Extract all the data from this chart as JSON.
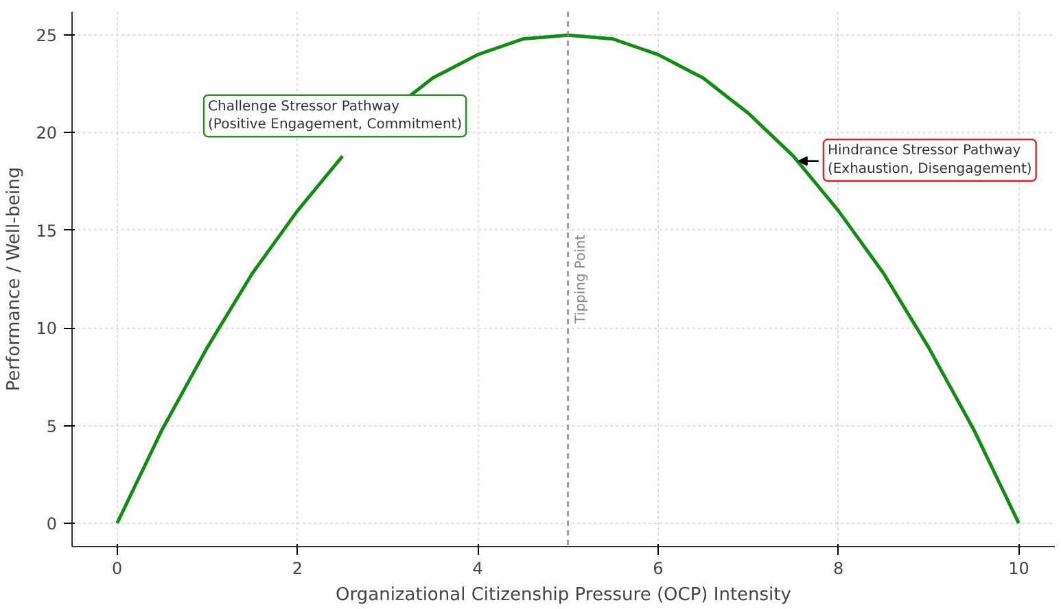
{
  "chart_data": {
    "type": "line",
    "xlabel": "Organizational Citizenship Pressure (OCP) Intensity",
    "ylabel": "Performance / Well-being",
    "x": [
      0,
      0.25,
      0.5,
      0.75,
      1,
      1.25,
      1.5,
      1.75,
      2,
      2.25,
      2.5,
      2.75,
      3,
      3.25,
      3.5,
      3.75,
      4,
      4.25,
      4.5,
      4.75,
      5,
      5.25,
      5.5,
      5.75,
      6,
      6.25,
      6.5,
      6.75,
      7,
      7.25,
      7.5,
      7.75,
      8,
      8.25,
      8.5,
      8.75,
      9,
      9.25,
      9.5,
      9.75,
      10
    ],
    "series": [
      {
        "color": "#168a16",
        "values": [
          0,
          2.4,
          4.8,
          6.9,
          9,
          10.9,
          12.8,
          14.4,
          16,
          17.4,
          18.8,
          null,
          null,
          21.9,
          22.8,
          23.4,
          24,
          24.4,
          24.8,
          24.9,
          25,
          24.9,
          24.8,
          24.4,
          24,
          23.4,
          22.8,
          21.9,
          21,
          19.9,
          18.8,
          17.4,
          16,
          14.4,
          12.8,
          10.9,
          9,
          6.9,
          4.8,
          2.4,
          0
        ]
      }
    ],
    "xlim": [
      -0.5,
      10.4
    ],
    "ylim": [
      -1.2,
      26.2
    ],
    "xticks": [
      0,
      2,
      4,
      6,
      8,
      10
    ],
    "yticks": [
      0,
      5,
      10,
      15,
      20,
      25
    ],
    "grid": true,
    "line_style": "solid",
    "ref_lines": [
      {
        "axis": "x",
        "value": 5,
        "label": "Tipping Point",
        "color": "#888888",
        "line_style": "dashed"
      }
    ],
    "annotations": [
      "Challenge Stressor Pathway\n(Positive Engagement, Commitment)",
      {
        "text": "Hindrance Stressor Pathway\n(Exhaustion, Disengagement)",
        "x": 7.56,
        "y": 18.45
      }
    ]
  }
}
